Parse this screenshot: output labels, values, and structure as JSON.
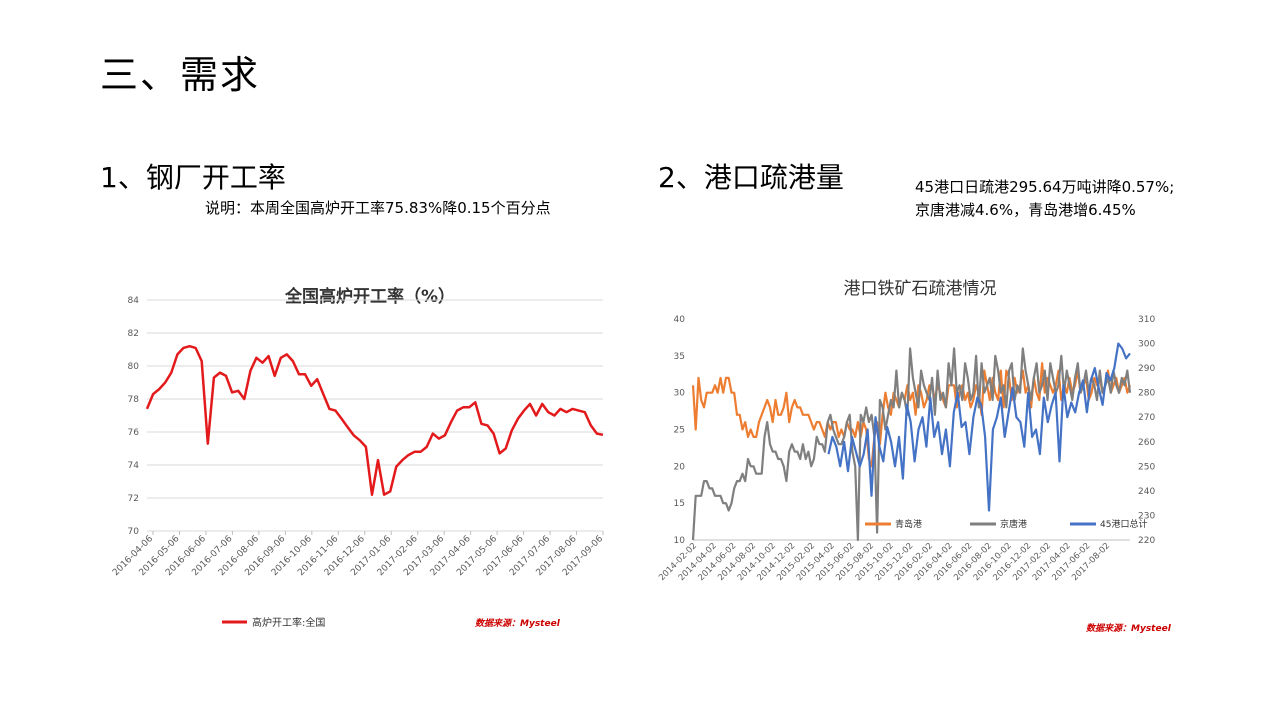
{
  "page": {
    "title": "三、需求",
    "section1_title": "1、钢厂开工率",
    "section1_note": "说明：本周全国高炉开工率75.83%降0.15个百分点",
    "section2_title": "2、港口疏港量",
    "section2_note_line1": "45港口日疏港295.64万吨讲降0.57%;",
    "section2_note_line2": "京唐港减4.6%，青岛港增6.45%"
  },
  "chart_data": [
    {
      "type": "line",
      "title": "全国高炉开工率（%）",
      "ylim": [
        70,
        84
      ],
      "yticks": [
        "70",
        "72",
        "74",
        "76",
        "78",
        "80",
        "82",
        "84"
      ],
      "xticks": [
        "2016-04-06",
        "2016-05-06",
        "2016-06-06",
        "2016-07-06",
        "2016-08-06",
        "2016-09-06",
        "2016-10-06",
        "2016-11-06",
        "2016-12-06",
        "2017-01-06",
        "2017-02-06",
        "2017-03-06",
        "2017-04-06",
        "2017-05-06",
        "2017-06-06",
        "2017-07-06",
        "2017-08-06",
        "2017-09-06"
      ],
      "grid": true,
      "legend_position": "bottom",
      "source": "数据来源：Mysteel",
      "series": [
        {
          "name": "高炉开工率:全国",
          "color": "#e31a1c",
          "values": [
            77.4,
            78.3,
            78.6,
            79.0,
            79.6,
            80.7,
            81.1,
            81.2,
            81.1,
            80.3,
            75.3,
            79.3,
            79.6,
            79.4,
            78.4,
            78.5,
            78.0,
            79.7,
            80.5,
            80.2,
            80.6,
            79.4,
            80.5,
            80.7,
            80.3,
            79.5,
            79.5,
            78.8,
            79.2,
            78.3,
            77.4,
            77.3,
            76.8,
            76.3,
            75.8,
            75.5,
            75.1,
            72.2,
            74.3,
            72.2,
            72.4,
            73.9,
            74.3,
            74.6,
            74.8,
            74.8,
            75.1,
            75.9,
            75.6,
            75.8,
            76.6,
            77.3,
            77.5,
            77.5,
            77.8,
            76.5,
            76.4,
            75.9,
            74.7,
            75.0,
            76.1,
            76.8,
            77.3,
            77.7,
            77.0,
            77.7,
            77.2,
            77.0,
            77.4,
            77.2,
            77.4,
            77.3,
            77.2,
            76.4,
            75.9,
            75.83
          ]
        }
      ]
    },
    {
      "type": "line",
      "title": "港口铁矿石疏港情况",
      "ylim": [
        10,
        40
      ],
      "y2lim": [
        220,
        310
      ],
      "yticks": [
        "10",
        "15",
        "20",
        "25",
        "30",
        "35",
        "40"
      ],
      "y2ticks": [
        "220",
        "230",
        "240",
        "250",
        "260",
        "270",
        "280",
        "290",
        "300",
        "310"
      ],
      "xticks": [
        "2014-02-02",
        "2014-04-02",
        "2014-06-02",
        "2014-08-02",
        "2014-10-02",
        "2014-12-02",
        "2015-02-02",
        "2015-04-02",
        "2015-06-02",
        "2015-08-02",
        "2015-10-02",
        "2015-12-02",
        "2016-02-02",
        "2016-04-02",
        "2016-06-02",
        "2016-08-02",
        "2016-10-02",
        "2016-12-02",
        "2017-02-02",
        "2017-04-02",
        "2017-06-02",
        "2017-08-02"
      ],
      "grid": false,
      "legend_position": "bottom-inside",
      "source": "数据来源：Mysteel",
      "series": [
        {
          "name": "青岛港",
          "color": "#ed7d31",
          "axis": "left",
          "values": [
            31,
            25,
            32,
            29,
            28,
            30,
            30,
            30,
            31,
            30,
            32,
            30,
            32,
            32,
            30,
            30,
            27,
            27,
            25,
            26,
            24,
            25,
            24,
            24,
            26,
            27,
            28,
            29,
            28,
            26,
            29,
            27,
            27,
            28,
            30,
            26,
            28,
            29,
            28,
            28,
            27,
            27,
            27,
            26,
            25,
            26,
            26,
            25,
            24,
            26,
            25,
            26,
            26,
            24,
            25,
            24,
            26,
            25,
            25,
            24,
            26,
            24,
            26,
            25,
            21,
            20,
            24,
            26,
            23,
            27,
            30,
            28,
            27,
            30,
            29,
            28,
            30,
            29,
            31,
            29,
            30,
            27,
            31,
            30,
            28,
            29,
            31,
            31,
            29,
            31,
            30,
            29,
            28,
            31,
            31,
            31,
            28,
            30,
            31,
            29,
            30,
            28,
            29,
            31,
            30,
            27,
            33,
            31,
            29,
            32,
            30,
            29,
            33,
            28,
            33,
            32,
            29,
            32,
            30,
            31,
            33,
            30,
            31,
            28,
            32,
            30,
            29,
            34,
            30,
            32,
            31,
            30,
            31,
            33,
            29,
            31,
            30,
            32,
            30,
            31,
            33,
            30,
            31,
            32,
            29,
            30,
            32,
            31,
            32,
            30,
            31,
            33,
            30,
            31,
            32,
            30,
            31,
            32,
            30,
            31
          ]
        },
        {
          "name": "京唐港",
          "color": "#7f7f7f",
          "axis": "left",
          "values": [
            10,
            16,
            16,
            16,
            18,
            18,
            17,
            17,
            16,
            16,
            16,
            15,
            15,
            14,
            15,
            17,
            18,
            18,
            19,
            18,
            21,
            20,
            20,
            19,
            19,
            19,
            24,
            26,
            23,
            22,
            22,
            21,
            21,
            20,
            18,
            22,
            23,
            22,
            22,
            21,
            23,
            21,
            22,
            20,
            21,
            24,
            23,
            23,
            22,
            26,
            27,
            25,
            24,
            23,
            23,
            24,
            26,
            27,
            22,
            20,
            10,
            27,
            26,
            28,
            26,
            27,
            24,
            11,
            29,
            28,
            25,
            27,
            29,
            28,
            33,
            28,
            30,
            29,
            27,
            36,
            32,
            30,
            28,
            33,
            31,
            30,
            29,
            32,
            27,
            33,
            29,
            30,
            28,
            34,
            31,
            36,
            30,
            31,
            29,
            34,
            32,
            29,
            30,
            35,
            28,
            34,
            30,
            31,
            32,
            29,
            35,
            33,
            30,
            31,
            28,
            33,
            34,
            29,
            31,
            30,
            36,
            33,
            31,
            29,
            32,
            34,
            30,
            31,
            33,
            29,
            34,
            32,
            30,
            31,
            35,
            30,
            33,
            31,
            29,
            32,
            34,
            30,
            31,
            33,
            30,
            32,
            31,
            29,
            33,
            30,
            31,
            32,
            30,
            33,
            31,
            30,
            32,
            31,
            33,
            30
          ]
        },
        {
          "name": "45港口总计",
          "color": "#4472c4",
          "axis": "right",
          "values": [
            255,
            262,
            258,
            250,
            260,
            248,
            262,
            256,
            250,
            255,
            265,
            238,
            270,
            258,
            252,
            266,
            260,
            250,
            262,
            245,
            275,
            268,
            252,
            265,
            270,
            258,
            278,
            262,
            268,
            255,
            265,
            250,
            272,
            280,
            266,
            268,
            255,
            270,
            278,
            275,
            262,
            232,
            265,
            270,
            278,
            262,
            272,
            282,
            270,
            268,
            258,
            280,
            262,
            265,
            255,
            278,
            268,
            275,
            280,
            252,
            283,
            270,
            276,
            272,
            280,
            285,
            272,
            285,
            290,
            282,
            275,
            288,
            285,
            290,
            300,
            298,
            294,
            296
          ]
        }
      ]
    }
  ]
}
